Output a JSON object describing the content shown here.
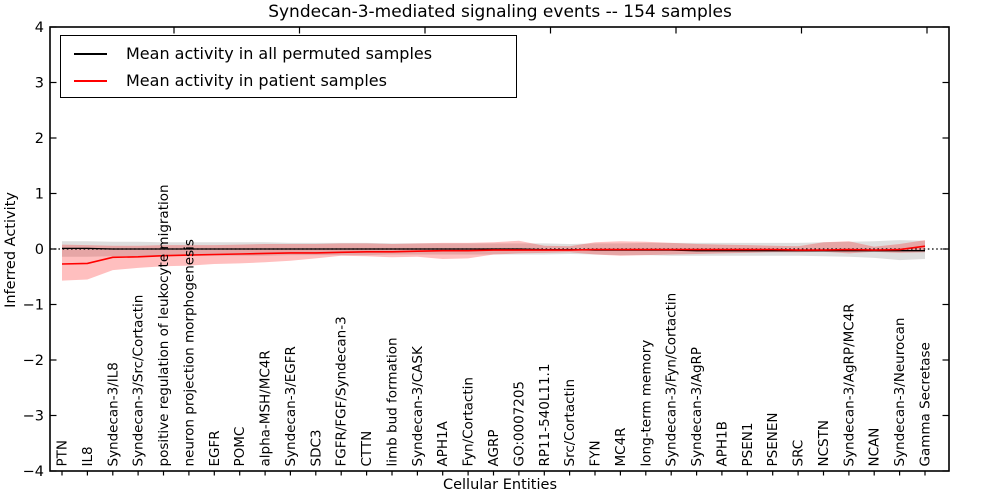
{
  "title": "Syndecan-3-mediated signaling events -- 154 samples",
  "axes": {
    "ylabel": "Inferred Activity",
    "xlabel": "Cellular Entities",
    "ytick_labels": [
      "4",
      "3",
      "2",
      "1",
      "0",
      "−1",
      "−2",
      "−3",
      "−4"
    ]
  },
  "legend": {
    "items": [
      {
        "label": "Mean activity in all permuted samples",
        "color": "#000000"
      },
      {
        "label": "Mean activity in patient samples",
        "color": "#ff0000"
      }
    ]
  },
  "chart_data": {
    "type": "line",
    "title": "Syndecan-3-mediated signaling events -- 154 samples",
    "xlabel": "Cellular Entities",
    "ylabel": "Inferred Activity",
    "ylim": [
      -4,
      4
    ],
    "grid": false,
    "legend_position": "upper left",
    "zero_reference_line": {
      "y": 0,
      "style": "dotted",
      "color": "#000000"
    },
    "categories": [
      "PTN",
      "IL8",
      "Syndecan-3/IL8",
      "Syndecan-3/Src/Cortactin",
      "positive regulation of leukocyte migration",
      "neuron projection morphogenesis",
      "EGFR",
      "POMC",
      "alpha-MSH/MC4R",
      "Syndecan-3/EGFR",
      "SDC3",
      "FGFR/FGF/Syndecan-3",
      "CTTN",
      "limb bud formation",
      "Syndecan-3/CASK",
      "APH1A",
      "Fyn/Cortactin",
      "AGRP",
      "GO:0007205",
      "RP11-540L11.1",
      "Src/Cortactin",
      "FYN",
      "MC4R",
      "long-term memory",
      "Syndecan-3/Fyn/Cortactin",
      "Syndecan-3/AgRP",
      "APH1B",
      "PSEN1",
      "PSENEN",
      "SRC",
      "NCSTN",
      "Syndecan-3/AgRP/MC4R",
      "NCAN",
      "Syndecan-3/Neurocan",
      "Gamma Secretase"
    ],
    "series": [
      {
        "name": "Mean activity in all permuted samples",
        "color": "#000000",
        "values": [
          0.01,
          0.01,
          0.0,
          0.0,
          0.0,
          0.0,
          0.0,
          0.0,
          0.0,
          0.0,
          0.0,
          0.0,
          0.0,
          0.0,
          0.0,
          0.0,
          0.0,
          0.0,
          0.0,
          -0.01,
          -0.01,
          -0.02,
          -0.02,
          -0.02,
          -0.02,
          -0.03,
          -0.03,
          -0.03,
          -0.03,
          -0.03,
          -0.03,
          -0.03,
          -0.03,
          -0.03,
          -0.03
        ]
      },
      {
        "name": "Mean activity in patient samples",
        "color": "#ff0000",
        "values": [
          -0.27,
          -0.26,
          -0.15,
          -0.14,
          -0.12,
          -0.11,
          -0.1,
          -0.09,
          -0.08,
          -0.07,
          -0.07,
          -0.06,
          -0.05,
          -0.05,
          -0.04,
          -0.03,
          -0.03,
          -0.02,
          -0.02,
          -0.02,
          -0.02,
          -0.01,
          -0.01,
          -0.01,
          -0.01,
          -0.01,
          -0.01,
          -0.01,
          -0.01,
          -0.02,
          -0.02,
          -0.01,
          -0.02,
          -0.01,
          0.05
        ]
      }
    ],
    "bands": [
      {
        "name": "permuted samples range",
        "color": "#000000",
        "opacity": 0.13,
        "upper": [
          0.14,
          0.14,
          0.13,
          0.13,
          0.12,
          0.12,
          0.12,
          0.12,
          0.12,
          0.11,
          0.11,
          0.11,
          0.11,
          0.1,
          0.1,
          0.1,
          0.1,
          0.1,
          0.1,
          0.1,
          0.09,
          0.1,
          0.1,
          0.11,
          0.11,
          0.11,
          0.11,
          0.11,
          0.11,
          0.11,
          0.12,
          0.13,
          0.14,
          0.16,
          0.15
        ],
        "lower": [
          -0.14,
          -0.14,
          -0.13,
          -0.13,
          -0.12,
          -0.12,
          -0.12,
          -0.12,
          -0.12,
          -0.11,
          -0.11,
          -0.11,
          -0.11,
          -0.1,
          -0.1,
          -0.1,
          -0.1,
          -0.1,
          -0.1,
          -0.1,
          -0.09,
          -0.1,
          -0.11,
          -0.11,
          -0.12,
          -0.12,
          -0.12,
          -0.12,
          -0.12,
          -0.12,
          -0.13,
          -0.14,
          -0.16,
          -0.2,
          -0.18
        ]
      },
      {
        "name": "patient samples range",
        "color": "#ff0000",
        "opacity": 0.25,
        "upper": [
          0.08,
          0.07,
          0.06,
          0.06,
          0.07,
          0.07,
          0.07,
          0.08,
          0.09,
          0.09,
          0.09,
          0.1,
          0.1,
          0.09,
          0.1,
          0.11,
          0.11,
          0.12,
          0.15,
          0.06,
          0.05,
          0.12,
          0.14,
          0.13,
          0.11,
          0.09,
          0.08,
          0.07,
          0.06,
          0.05,
          0.12,
          0.14,
          0.04,
          0.09,
          0.16
        ],
        "lower": [
          -0.57,
          -0.55,
          -0.38,
          -0.34,
          -0.31,
          -0.3,
          -0.27,
          -0.26,
          -0.24,
          -0.21,
          -0.17,
          -0.12,
          -0.13,
          -0.15,
          -0.14,
          -0.18,
          -0.17,
          -0.1,
          -0.08,
          -0.07,
          -0.06,
          -0.1,
          -0.12,
          -0.11,
          -0.1,
          -0.09,
          -0.08,
          -0.07,
          -0.06,
          -0.06,
          -0.05,
          -0.08,
          -0.05,
          -0.07,
          -0.06
        ]
      }
    ]
  }
}
